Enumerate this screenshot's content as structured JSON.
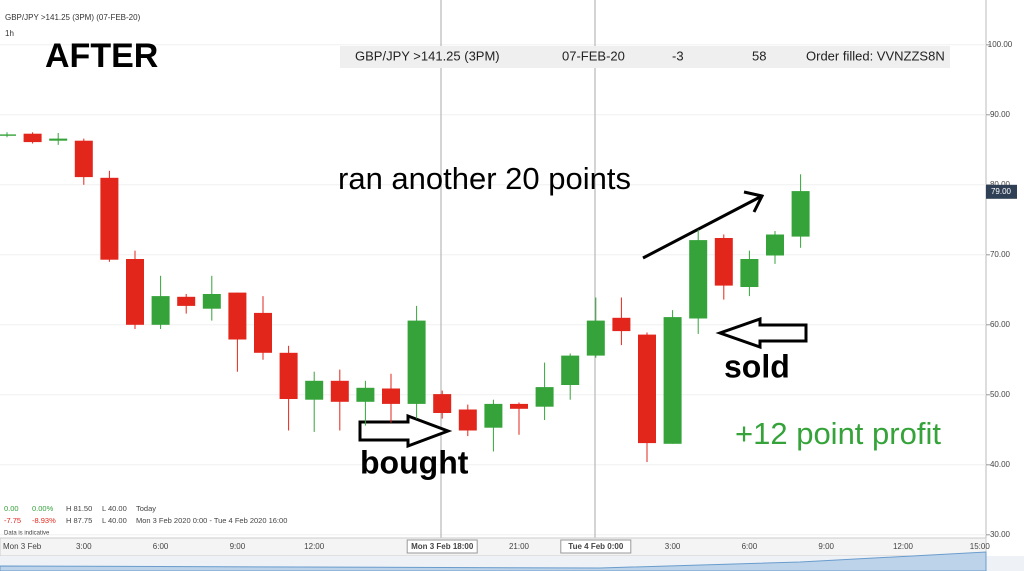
{
  "chart_data": {
    "type": "candlestick",
    "header": "GBP/JPY >141.25 (3PM) (07-FEB-20)",
    "interval": "1h",
    "title": "AFTER",
    "order_row": [
      "GBP/JPY >141.25 (3PM)",
      "07-FEB-20",
      "-3",
      "58",
      "Order filled: VVNZZS8N"
    ],
    "annotations": {
      "ran": "ran another 20 points",
      "bought": "bought",
      "sold": "sold",
      "profit": "+12 point profit"
    },
    "info": [
      [
        "0.00",
        "0.00%",
        "H 81.50",
        "L 40.00",
        "Today"
      ],
      [
        "-7.75",
        "-8.93%",
        "H 87.75",
        "L 40.00",
        "Mon 3 Feb 2020 0:00 - Tue 4 Feb 2020 16:00"
      ],
      [
        "Data is indicative"
      ]
    ],
    "categories": [
      "Mon 3 Feb",
      null,
      null,
      "3:00",
      null,
      null,
      "6:00",
      null,
      null,
      "9:00",
      null,
      null,
      "12:00",
      null,
      null,
      null,
      null,
      "Mon 3 Feb 18:00",
      null,
      null,
      "21:00",
      null,
      null,
      "Tue 4 Feb 0:00",
      null,
      null,
      "3:00",
      null,
      null,
      "6:00",
      null,
      null,
      "9:00",
      null,
      null,
      "12:00",
      null,
      null,
      "15:00"
    ],
    "open": [
      87.0,
      87.3,
      86.3,
      86.3,
      81.0,
      69.4,
      60.0,
      64.0,
      62.3,
      64.6,
      61.7,
      56.0,
      49.3,
      52.0,
      49.0,
      50.9,
      48.7,
      50.1,
      47.9,
      45.3,
      48.7,
      48.3,
      51.4,
      55.6,
      61.0,
      58.6,
      43.0,
      60.9,
      72.4,
      65.4,
      69.9,
      72.6,
      null,
      null,
      null,
      null,
      null,
      null,
      null
    ],
    "high": [
      87.5,
      87.5,
      87.4,
      86.6,
      82.0,
      70.6,
      67.0,
      64.4,
      67.0,
      64.6,
      64.1,
      57.0,
      53.3,
      53.6,
      52.0,
      53.0,
      62.7,
      50.6,
      48.6,
      49.3,
      48.9,
      54.6,
      55.9,
      63.9,
      63.9,
      58.9,
      62.1,
      73.6,
      72.9,
      70.6,
      73.4,
      81.5,
      null,
      null,
      null,
      null,
      null,
      null,
      null
    ],
    "low": [
      86.8,
      85.9,
      85.7,
      80.0,
      69.0,
      59.4,
      59.4,
      61.6,
      60.6,
      53.3,
      55.0,
      44.9,
      44.7,
      44.9,
      45.6,
      46.0,
      46.6,
      46.6,
      44.1,
      41.9,
      44.3,
      46.4,
      49.3,
      55.3,
      57.1,
      40.4,
      43.0,
      58.7,
      63.6,
      64.1,
      68.7,
      71.0,
      null,
      null,
      null,
      null,
      null,
      null,
      null
    ],
    "close": [
      87.2,
      86.1,
      86.6,
      81.1,
      69.3,
      60.0,
      64.1,
      62.7,
      64.4,
      57.9,
      56.0,
      49.4,
      52.0,
      49.0,
      51.0,
      48.7,
      60.6,
      47.4,
      44.9,
      48.7,
      48.0,
      51.1,
      55.6,
      60.6,
      59.1,
      43.1,
      61.1,
      72.1,
      65.6,
      69.4,
      72.9,
      79.1,
      null,
      null,
      null,
      null,
      null,
      null,
      null
    ],
    "up_color": "#35a33a",
    "down_color": "#e2261c",
    "ylim": [
      28.4,
      106.4
    ],
    "yticks": [
      {
        "value": 30,
        "label": "30.00"
      },
      {
        "value": 40,
        "label": "40.00"
      },
      {
        "value": 50,
        "label": "50.00"
      },
      {
        "value": 60,
        "label": "60.00"
      },
      {
        "value": 70,
        "label": "70.00"
      },
      {
        "value": 80,
        "label": "80.00"
      },
      {
        "value": 90,
        "label": "90.00"
      },
      {
        "value": 100,
        "label": "100.00"
      }
    ],
    "last_price": {
      "value": 79,
      "label": "79.00"
    },
    "grid": true
  }
}
